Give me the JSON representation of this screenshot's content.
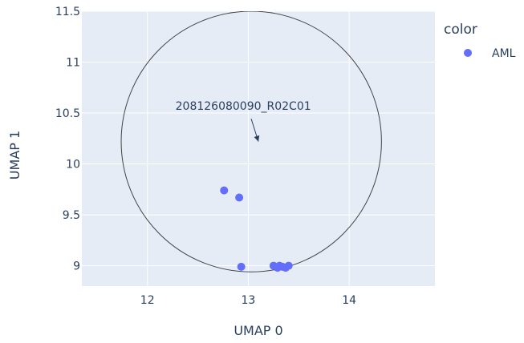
{
  "chart_data": {
    "type": "scatter",
    "title": "",
    "xlabel": "UMAP 0",
    "ylabel": "UMAP 1",
    "xlim": [
      11.35,
      14.85
    ],
    "ylim": [
      8.8,
      11.5
    ],
    "xticks": [
      12,
      13,
      14
    ],
    "yticks": [
      9,
      9.5,
      10,
      10.5,
      11,
      11.5
    ],
    "tick_labels_x": [
      "12",
      "13",
      "14"
    ],
    "tick_labels_y": [
      "9",
      "9.5",
      "10",
      "10.5",
      "11",
      "11.5"
    ],
    "grid": true,
    "legend": {
      "title": "color",
      "placement": "right",
      "entries": [
        "AML"
      ]
    },
    "series": [
      {
        "name": "AML",
        "color": "#636efa",
        "points": [
          {
            "x": 12.76,
            "y": 9.74
          },
          {
            "x": 12.91,
            "y": 9.67
          },
          {
            "x": 12.93,
            "y": 8.99
          },
          {
            "x": 13.25,
            "y": 9.0
          },
          {
            "x": 13.29,
            "y": 8.98
          },
          {
            "x": 13.31,
            "y": 9.0
          },
          {
            "x": 13.34,
            "y": 8.99
          },
          {
            "x": 13.37,
            "y": 8.98
          },
          {
            "x": 13.4,
            "y": 9.0
          }
        ]
      }
    ],
    "shape": {
      "type": "circle",
      "center": [
        13.03,
        10.22
      ],
      "rx": 1.29,
      "ry": 1.28,
      "color": "#444444"
    },
    "annotation": {
      "text": "208126080090_R02C01",
      "target": [
        13.1,
        10.22
      ],
      "text_at": [
        12.95,
        10.57
      ]
    },
    "colors": {
      "plot_bg": "#e5ecf6",
      "grid": "#ffffff",
      "text": "#2a3f5f",
      "marker": "#636efa"
    }
  }
}
